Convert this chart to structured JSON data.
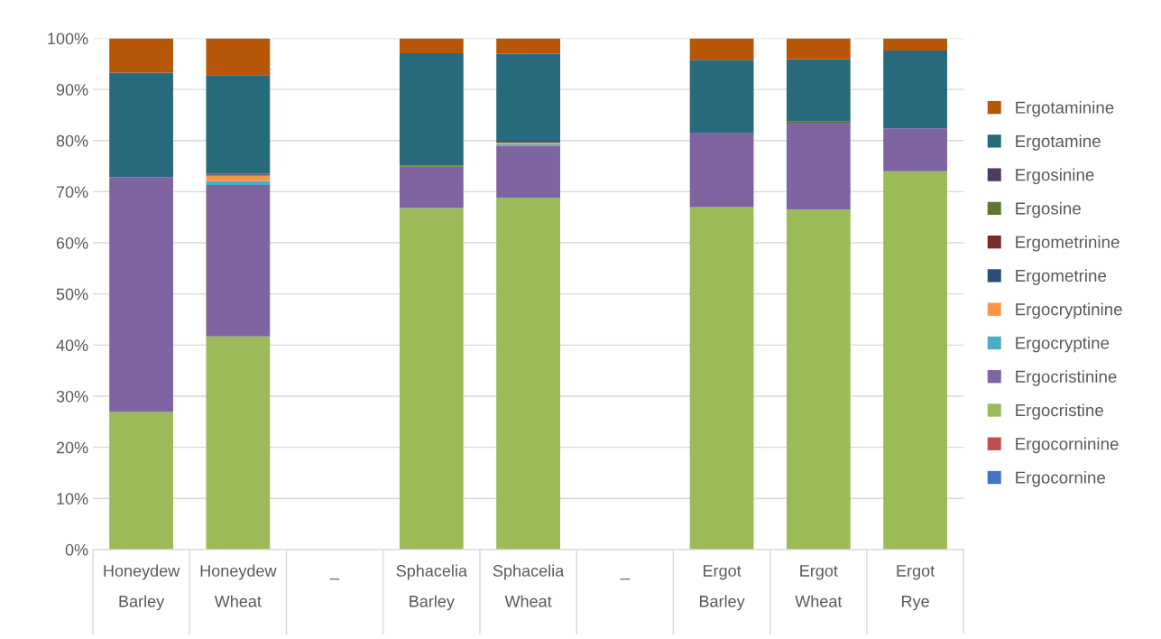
{
  "chart_data": {
    "type": "bar",
    "stacked": true,
    "categories": [
      "Honeydew\nBarley",
      "Honeydew\nWheat",
      "_",
      "Sphacelia\nBarley",
      "Sphacelia\nWheat",
      "_",
      "Ergot\nBarley",
      "Ergot\nWheat",
      "Ergot\nRye"
    ],
    "series": [
      {
        "name": "Ergocornine",
        "color": "#4472c4",
        "values": [
          0,
          0,
          null,
          0,
          0,
          null,
          0,
          0,
          0
        ]
      },
      {
        "name": "Ergocorninine",
        "color": "#c0504d",
        "values": [
          0,
          0,
          null,
          0,
          0,
          null,
          0,
          0,
          0
        ]
      },
      {
        "name": "Ergocristine",
        "color": "#9bbb59",
        "values": [
          26.9,
          41.7,
          null,
          66.8,
          68.8,
          null,
          67.0,
          66.5,
          74.0
        ]
      },
      {
        "name": "Ergocristinine",
        "color": "#8064a2",
        "values": [
          45.9,
          29.6,
          null,
          8.1,
          10.2,
          null,
          14.4,
          17.0,
          8.4
        ]
      },
      {
        "name": "Ergocryptine",
        "color": "#4bacc6",
        "values": [
          0,
          0.8,
          null,
          0,
          0.3,
          null,
          0,
          0,
          0
        ]
      },
      {
        "name": "Ergocryptinine",
        "color": "#f79646",
        "values": [
          0,
          1.0,
          null,
          0,
          0.3,
          null,
          0,
          0,
          0
        ]
      },
      {
        "name": "Ergometrine",
        "color": "#2c4d75",
        "values": [
          0,
          0,
          null,
          0,
          0,
          null,
          0,
          0,
          0
        ]
      },
      {
        "name": "Ergometrinine",
        "color": "#772c2a",
        "values": [
          0,
          0,
          null,
          0,
          0,
          null,
          0,
          0,
          0
        ]
      },
      {
        "name": "Ergosine",
        "color": "#5f7530",
        "values": [
          0,
          0.2,
          null,
          0.2,
          0,
          null,
          0,
          0.2,
          0
        ]
      },
      {
        "name": "Ergosinine",
        "color": "#4d3b62",
        "values": [
          0,
          0.2,
          null,
          0,
          0,
          null,
          0,
          0,
          0
        ]
      },
      {
        "name": "Ergotamine",
        "color": "#276a7c",
        "values": [
          20.5,
          19.3,
          null,
          22.0,
          17.4,
          null,
          14.4,
          12.2,
          15.2
        ]
      },
      {
        "name": "Ergotaminine",
        "color": "#b65708",
        "values": [
          6.7,
          7.2,
          null,
          2.9,
          3.0,
          null,
          4.2,
          4.1,
          2.4
        ]
      }
    ],
    "ylim": [
      0,
      100
    ],
    "yticks": [
      {
        "value": 0,
        "label": "0%"
      },
      {
        "value": 10,
        "label": "10%"
      },
      {
        "value": 20,
        "label": "20%"
      },
      {
        "value": 30,
        "label": "30%"
      },
      {
        "value": 40,
        "label": "40%"
      },
      {
        "value": 50,
        "label": "50%"
      },
      {
        "value": 60,
        "label": "60%"
      },
      {
        "value": 70,
        "label": "70%"
      },
      {
        "value": 80,
        "label": "80%"
      },
      {
        "value": 90,
        "label": "90%"
      },
      {
        "value": 100,
        "label": "100%"
      }
    ],
    "grid": "y",
    "legend": "right"
  }
}
